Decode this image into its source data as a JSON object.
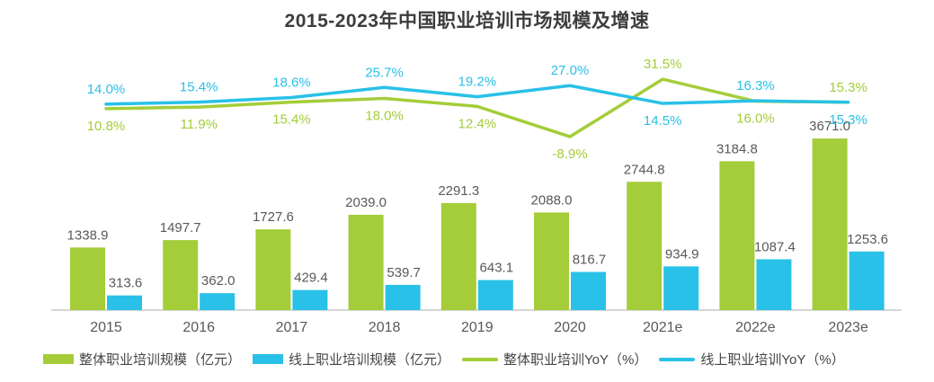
{
  "chart_data": {
    "type": "combo-bar-line",
    "title": "2015-2023年中国职业培训市场规模及增速",
    "categories": [
      "2015",
      "2016",
      "2017",
      "2018",
      "2019",
      "2020",
      "2021e",
      "2022e",
      "2023e"
    ],
    "bar_series": [
      {
        "name": "整体职业培训规模（亿元）",
        "color": "#a4cd39",
        "values": [
          1338.9,
          1497.7,
          1727.6,
          2039.0,
          2291.3,
          2088.0,
          2744.8,
          3184.8,
          3671.0
        ],
        "labels": [
          "1338.9",
          "1497.7",
          "1727.6",
          "2039.0",
          "2291.3",
          "2088.0",
          "2744.8",
          "3184.8",
          "3671.0"
        ]
      },
      {
        "name": "线上职业培训规模（亿元）",
        "color": "#29c1e7",
        "values": [
          313.6,
          362.0,
          429.4,
          539.7,
          643.1,
          816.7,
          934.9,
          1087.4,
          1253.6
        ],
        "labels": [
          "313.6",
          "362.0",
          "429.4",
          "539.7",
          "643.1",
          "816.7",
          "934.9",
          "1087.4",
          "1253.6"
        ]
      }
    ],
    "line_series": [
      {
        "name": "整体职业培训YoY（%）",
        "color": "#a4cd39",
        "values": [
          10.8,
          11.9,
          15.4,
          18.0,
          12.4,
          -8.9,
          31.5,
          16.0,
          15.3
        ],
        "labels": [
          "10.8%",
          "11.9%",
          "15.4%",
          "18.0%",
          "12.4%",
          "-8.9%",
          "31.5%",
          "16.0%",
          "15.3%"
        ]
      },
      {
        "name": "线上职业培训YoY（%）",
        "color": "#29c1e7",
        "values": [
          14.0,
          15.4,
          18.6,
          25.7,
          19.2,
          27.0,
          14.5,
          16.3,
          15.3
        ],
        "labels": [
          "14.0%",
          "15.4%",
          "18.6%",
          "25.7%",
          "19.2%",
          "27.0%",
          "14.5%",
          "16.3%",
          "15.3%"
        ]
      }
    ],
    "axis": {
      "bar_value_range": [
        0,
        3900
      ],
      "line_value_range": [
        -15,
        35
      ],
      "gridlines": false,
      "x_axis_line": true
    },
    "legend_position": "bottom",
    "colors": {
      "overall_green": "#a4cd39",
      "online_blue": "#29c1e7",
      "value_label": "#595959",
      "axis_label": "#595959",
      "axis_line": "#d7d7d7",
      "title_text": "#3d3d3d",
      "legend_text": "#454545",
      "background": "#ffffff"
    }
  }
}
